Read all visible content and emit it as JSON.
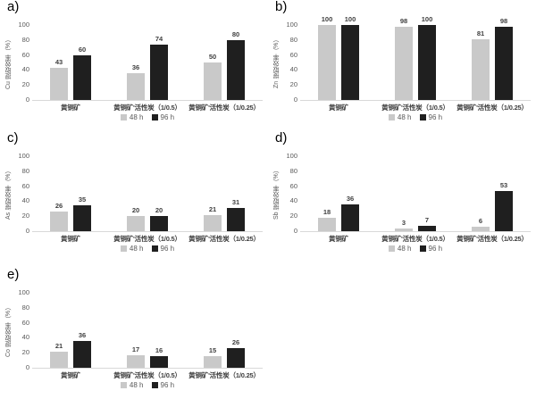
{
  "figure": {
    "background": "#ffffff",
    "series_colors": {
      "h48": "#c9c9c9",
      "h96": "#1f1f1f"
    },
    "axis_line_color": "#d9d9d9",
    "tick_text_color": "#595959"
  },
  "chart_data": [
    {
      "type": "bar",
      "panel_label": "a)",
      "ylabel": "Cu 提取效率（%）",
      "ylim": [
        0,
        100
      ],
      "yticks": [
        0,
        20,
        40,
        60,
        80,
        100
      ],
      "grid": false,
      "legend_position": "bottom",
      "categories": [
        "黄铜矿",
        "黄铜矿'活性炭（1/0.5）",
        "黄铜矿'活性炭（1/0.25）"
      ],
      "series": [
        {
          "name": "48 h",
          "color": "#c9c9c9",
          "values": [
            43,
            36,
            50
          ]
        },
        {
          "name": "96 h",
          "color": "#1f1f1f",
          "values": [
            60,
            74,
            80
          ]
        }
      ]
    },
    {
      "type": "bar",
      "panel_label": "b)",
      "ylabel": "Zn 提取效率（%）",
      "ylim": [
        0,
        100
      ],
      "yticks": [
        0,
        20,
        40,
        60,
        80,
        100
      ],
      "grid": false,
      "legend_position": "bottom",
      "categories": [
        "黄铜矿",
        "黄铜矿'活性炭（1/0.5）",
        "黄铜矿'活性炭（1/0.25）"
      ],
      "series": [
        {
          "name": "48 h",
          "color": "#c9c9c9",
          "values": [
            100,
            98,
            81
          ]
        },
        {
          "name": "96 h",
          "color": "#1f1f1f",
          "values": [
            100,
            100,
            98
          ]
        }
      ]
    },
    {
      "type": "bar",
      "panel_label": "c)",
      "ylabel": "As 提取效率（%）",
      "ylim": [
        0,
        100
      ],
      "yticks": [
        0,
        20,
        40,
        60,
        80,
        100
      ],
      "grid": false,
      "legend_position": "bottom",
      "categories": [
        "黄铜矿",
        "黄铜矿'活性炭（1/0.5）",
        "黄铜矿'活性炭（1/0.25）"
      ],
      "series": [
        {
          "name": "48 h",
          "color": "#c9c9c9",
          "values": [
            26,
            20,
            21
          ]
        },
        {
          "name": "96 h",
          "color": "#1f1f1f",
          "values": [
            35,
            20,
            31
          ]
        }
      ]
    },
    {
      "type": "bar",
      "panel_label": "d)",
      "ylabel": "Sb 提取效率（%）",
      "ylim": [
        0,
        100
      ],
      "yticks": [
        0,
        20,
        40,
        60,
        80,
        100
      ],
      "grid": false,
      "legend_position": "bottom",
      "categories": [
        "黄铜矿",
        "黄铜矿'活性炭（1/0.5）",
        "黄铜矿'活性炭（1/0.25）"
      ],
      "series": [
        {
          "name": "48 h",
          "color": "#c9c9c9",
          "values": [
            18,
            3,
            6
          ]
        },
        {
          "name": "96 h",
          "color": "#1f1f1f",
          "values": [
            36,
            7,
            53
          ]
        }
      ]
    },
    {
      "type": "bar",
      "panel_label": "e)",
      "ylabel": "Co 提取效率（%）",
      "ylim": [
        0,
        100
      ],
      "yticks": [
        0,
        20,
        40,
        60,
        80,
        100
      ],
      "grid": false,
      "legend_position": "bottom",
      "categories": [
        "黄铜矿",
        "黄铜矿'活性炭（1/0.5）",
        "黄铜矿'活性炭（1/0.25）"
      ],
      "series": [
        {
          "name": "48 h",
          "color": "#c9c9c9",
          "values": [
            21,
            17,
            15
          ]
        },
        {
          "name": "96 h",
          "color": "#1f1f1f",
          "values": [
            36,
            16,
            26
          ]
        }
      ]
    }
  ]
}
